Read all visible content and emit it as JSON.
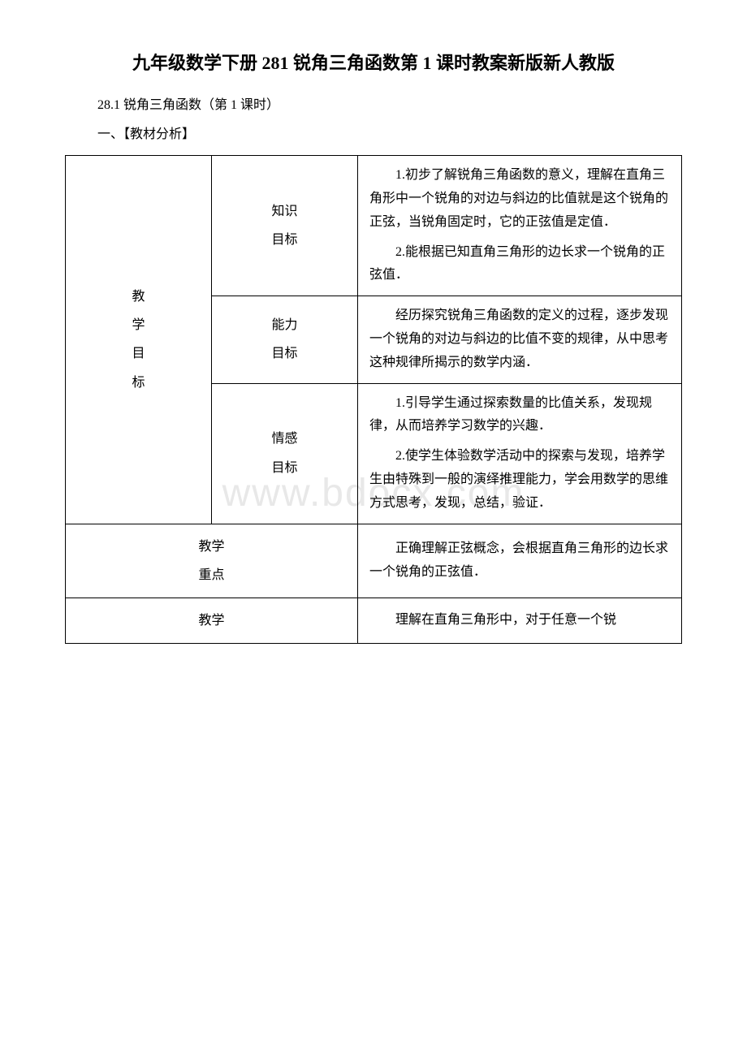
{
  "title": "九年级数学下册 281 锐角三角函数第 1 课时教案新版新人教版",
  "subtitle": "28.1 锐角三角函数（第 1 课时）",
  "section_header": "一、【教材分析】",
  "watermark": "www.bdocx.com",
  "table": {
    "rows": [
      {
        "label_chars": [
          "教",
          "学",
          "目",
          "标"
        ],
        "label_rowspan": 3,
        "sublabel_lines": [
          "知识",
          "目标"
        ],
        "content": [
          "1.初步了解锐角三角函数的意义，理解在直角三角形中一个锐角的对边与斜边的比值就是这个锐角的正弦，当锐角固定时，它的正弦值是定值．",
          "2.能根据已知直角三角形的边长求一个锐角的正弦值．"
        ]
      },
      {
        "sublabel_lines": [
          "能力",
          "目标"
        ],
        "content": [
          "经历探究锐角三角函数的定义的过程，逐步发现一个锐角的对边与斜边的比值不变的规律，从中思考这种规律所揭示的数学内涵．"
        ]
      },
      {
        "sublabel_lines": [
          "情感",
          "目标"
        ],
        "content": [
          "1.引导学生通过探索数量的比值关系，发现规律，从而培养学习数学的兴趣．",
          "2.使学生体验数学活动中的探索与发现，培养学生由特殊到一般的演绎推理能力，学会用数学的思维方式思考，发现，总结，验证．"
        ]
      },
      {
        "label_lines": [
          "教学",
          "重点"
        ],
        "label_colspan": 2,
        "content": [
          "正确理解正弦概念，会根据直角三角形的边长求一个锐角的正弦值．"
        ]
      },
      {
        "label_lines": [
          "教学"
        ],
        "label_colspan": 2,
        "content": [
          "理解在直角三角形中，对于任意一个锐"
        ]
      }
    ]
  },
  "colors": {
    "text": "#000000",
    "background": "#ffffff",
    "border": "#000000",
    "watermark": "#e8e8e8"
  }
}
